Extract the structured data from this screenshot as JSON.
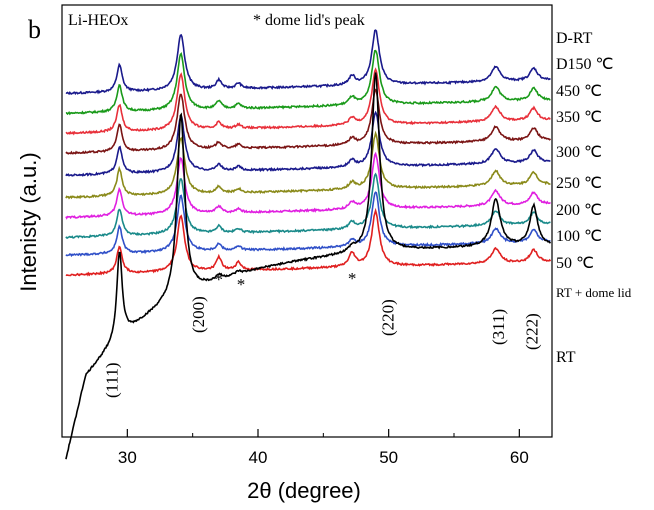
{
  "figure": {
    "panel_label": "b",
    "sample_label": "Li-HEOx",
    "peak_note": "* dome lid's peak"
  },
  "chart_data": {
    "type": "line",
    "title": "",
    "xlabel": "2θ (degree)",
    "ylabel": "Intenisty (a.u.)",
    "xlim": [
      25,
      62.5
    ],
    "xticks": [
      30,
      40,
      50,
      60
    ],
    "yticks_shown": false,
    "grid": false,
    "legend": "none",
    "series": [
      {
        "name": "D-RT",
        "color": "#1a1a8c",
        "baseline": 1.0,
        "slope": 0.06,
        "peak_scale": 0.55,
        "dome": 0.8
      },
      {
        "name": "D150 ℃",
        "color": "#1a9a1a",
        "baseline": 0.91,
        "slope": 0.06,
        "peak_scale": 0.55,
        "dome": 0.7
      },
      {
        "name": "450 ℃",
        "color": "#e8303a",
        "baseline": 0.82,
        "slope": 0.06,
        "peak_scale": 0.55,
        "dome": 0.6
      },
      {
        "name": "350 ℃",
        "color": "#7a1414",
        "baseline": 0.73,
        "slope": 0.06,
        "peak_scale": 0.55,
        "dome": 0.6
      },
      {
        "name": "300 ℃",
        "color": "#1a1a8c",
        "baseline": 0.63,
        "slope": 0.06,
        "peak_scale": 0.55,
        "dome": 0.6
      },
      {
        "name": "250 ℃",
        "color": "#8a8a1a",
        "baseline": 0.53,
        "slope": 0.06,
        "peak_scale": 0.55,
        "dome": 0.6
      },
      {
        "name": "200 ℃",
        "color": "#e020e0",
        "baseline": 0.44,
        "slope": 0.06,
        "peak_scale": 0.55,
        "dome": 0.6
      },
      {
        "name": "100 ℃",
        "color": "#1a8a8a",
        "baseline": 0.35,
        "slope": 0.06,
        "peak_scale": 0.55,
        "dome": 0.6
      },
      {
        "name": "50 ℃",
        "color": "#3050c8",
        "baseline": 0.27,
        "slope": 0.06,
        "peak_scale": 0.55,
        "dome": 0.6
      },
      {
        "name": "RT + dome lid",
        "color": "#e02020",
        "baseline": 0.18,
        "slope": 0.06,
        "peak_scale": 0.55,
        "dome": 1.2
      },
      {
        "name": "RT",
        "color": "#000000",
        "baseline": -0.3,
        "slope": 0.45,
        "peak_scale": 1.8,
        "dome": 0.4
      }
    ],
    "peaks": [
      {
        "pos": 29.4,
        "height": 0.22,
        "width": 0.25,
        "label": "(111)"
      },
      {
        "pos": 34.1,
        "height": 0.46,
        "width": 0.35,
        "label": "(200)"
      },
      {
        "pos": 49.0,
        "height": 0.45,
        "width": 0.35,
        "label": "(220)"
      },
      {
        "pos": 58.2,
        "height": 0.12,
        "width": 0.4,
        "label": "(311)"
      },
      {
        "pos": 61.1,
        "height": 0.1,
        "width": 0.35,
        "label": "(222)"
      }
    ],
    "dome_peaks": [
      {
        "pos": 37.0,
        "height": 0.05,
        "width": 0.25
      },
      {
        "pos": 38.5,
        "height": 0.03,
        "width": 0.25
      },
      {
        "pos": 47.2,
        "height": 0.05,
        "width": 0.3
      }
    ],
    "dome_markers": [
      37.0,
      38.7,
      47.2
    ]
  }
}
